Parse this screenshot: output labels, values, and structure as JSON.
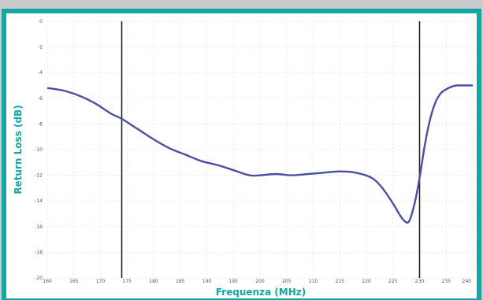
{
  "chart_data": {
    "type": "line",
    "title": "",
    "xlabel": "Frequenza (MHz)",
    "ylabel": "Return Loss (dB)",
    "xlim": [
      160,
      240
    ],
    "ylim": [
      -20,
      0
    ],
    "x_ticks": [
      "160",
      "165",
      "170",
      "175",
      "180",
      "185",
      "190",
      "195",
      "200",
      "205",
      "210",
      "215",
      "220",
      "225",
      "230",
      "235",
      "240"
    ],
    "y_ticks": [
      "0",
      "-2",
      "-4",
      "-6",
      "-8",
      "-10",
      "-12",
      "-14",
      "-16",
      "-18",
      "-20"
    ],
    "grid": true,
    "vertical_markers": [
      174,
      230
    ],
    "series": [
      {
        "name": "",
        "color": "#4a4fa0",
        "x": [
          160,
          163,
          166,
          169,
          172,
          174,
          177,
          180,
          183,
          186,
          189,
          192,
          195,
          198,
          200,
          203,
          206,
          209,
          212,
          215,
          218,
          221,
          223,
          225,
          226,
          227,
          228,
          229,
          230,
          231,
          232,
          233,
          234,
          235,
          236,
          237,
          238,
          240
        ],
        "y": [
          -5.2,
          -5.4,
          -5.8,
          -6.4,
          -7.2,
          -7.6,
          -8.4,
          -9.2,
          -9.9,
          -10.4,
          -10.9,
          -11.2,
          -11.6,
          -12.0,
          -12.0,
          -11.9,
          -12.0,
          -11.9,
          -11.8,
          -11.7,
          -11.8,
          -12.2,
          -13.0,
          -14.2,
          -14.9,
          -15.5,
          -15.6,
          -14.3,
          -12.2,
          -9.6,
          -7.6,
          -6.3,
          -5.6,
          -5.3,
          -5.1,
          -5.0,
          -5.0,
          -5.0
        ]
      }
    ]
  }
}
